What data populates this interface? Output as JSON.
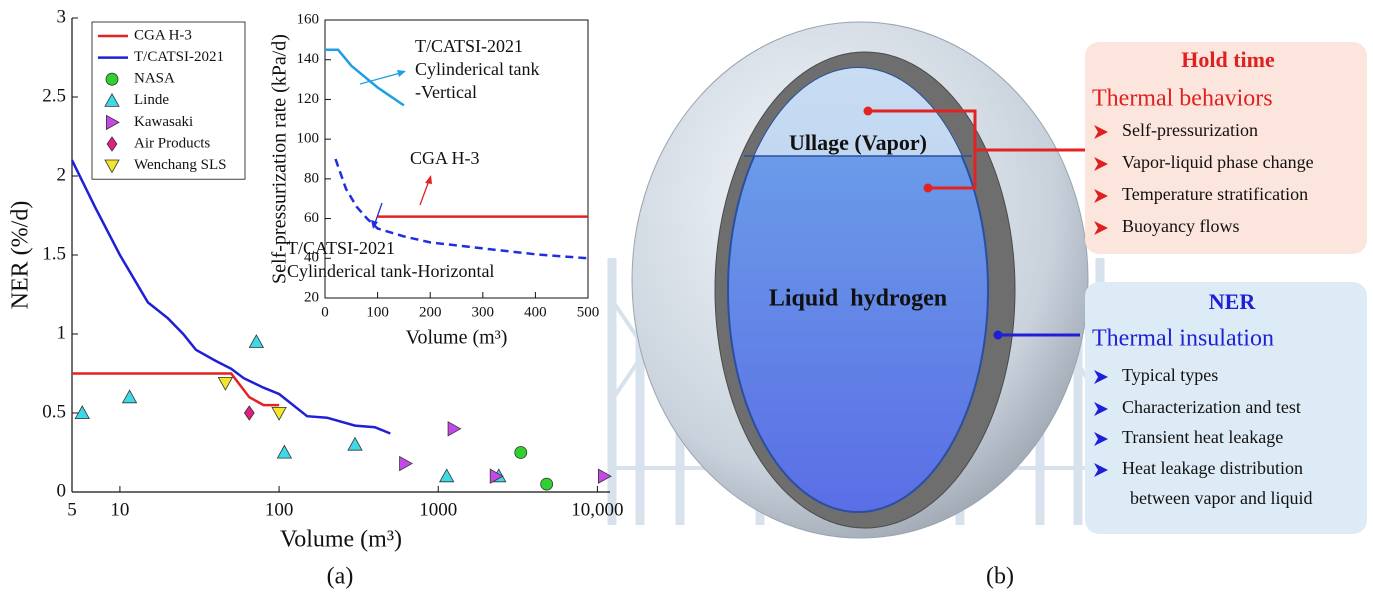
{
  "chart_data": [
    {
      "type": "line",
      "xlabel": "Volume (m³)",
      "ylabel": "NER (%/d)",
      "xscale": "log",
      "xlim": [
        5,
        12000
      ],
      "xticks": [
        5,
        10,
        100,
        1000,
        {
          "value": 10000,
          "label": "10,000"
        }
      ],
      "ylim": [
        0,
        3
      ],
      "yticks": [
        0,
        0.5,
        1,
        1.5,
        2,
        2.5,
        3
      ],
      "legend": "upper left",
      "series": [
        {
          "name": "CGA H-3",
          "color": "#e32222",
          "x": [
            5,
            50,
            65,
            80,
            100
          ],
          "values": [
            0.75,
            0.75,
            0.6,
            0.55,
            0.55
          ]
        },
        {
          "name": "T/CATSI-2021",
          "color": "#1f1fd6",
          "x": [
            5,
            7,
            10,
            15,
            20,
            25,
            30,
            40,
            50,
            60,
            80,
            100,
            150,
            200,
            300,
            400,
            500
          ],
          "values": [
            2.1,
            1.8,
            1.5,
            1.2,
            1.1,
            1.0,
            0.9,
            0.83,
            0.78,
            0.72,
            0.66,
            0.62,
            0.48,
            0.47,
            0.42,
            0.41,
            0.37
          ]
        },
        {
          "name": "NASA",
          "color": "#2fd12f",
          "marker": "circle",
          "x": [
            3300,
            4800
          ],
          "values": [
            0.25,
            0.05
          ]
        },
        {
          "name": "Linde",
          "color": "#3fd8e6",
          "marker": "triangle-up",
          "x": [
            5.8,
            11.5,
            72,
            108,
            300,
            1130,
            2400
          ],
          "values": [
            0.5,
            0.6,
            0.95,
            0.25,
            0.3,
            0.1,
            0.1
          ]
        },
        {
          "name": "Kawasaki",
          "color": "#c349e6",
          "marker": "triangle-right",
          "x": [
            620,
            1250,
            2300,
            11000
          ],
          "values": [
            0.18,
            0.4,
            0.1,
            0.1
          ]
        },
        {
          "name": "Air Products",
          "color": "#e3207f",
          "marker": "diamond",
          "x": [
            65
          ],
          "values": [
            0.5
          ]
        },
        {
          "name": "Wenchang SLS",
          "color": "#f2e62a",
          "marker": "triangle-down",
          "x": [
            46,
            100
          ],
          "values": [
            0.69,
            0.5
          ]
        }
      ]
    },
    {
      "type": "line",
      "xlabel": "Volume (m³)",
      "ylabel": "Self-pressurization rate (kPa/d)",
      "xlim": [
        0,
        500
      ],
      "xticks": [
        0,
        100,
        200,
        300,
        400,
        500
      ],
      "ylim": [
        20,
        160
      ],
      "yticks": [
        20,
        40,
        60,
        80,
        100,
        120,
        140,
        160
      ],
      "series": [
        {
          "color": "#1e9fe6",
          "x": [
            0,
            25,
            50,
            100,
            150
          ],
          "values": [
            145,
            145,
            137,
            126,
            117
          ]
        },
        {
          "color": "#e32222",
          "x": [
            100,
            500
          ],
          "values": [
            61,
            61
          ]
        },
        {
          "color": "#1f2fe0",
          "dash": true,
          "x": [
            20,
            40,
            60,
            80,
            100,
            150,
            200,
            300,
            400,
            500
          ],
          "values": [
            90,
            75,
            66,
            60,
            55,
            51,
            48,
            45,
            42,
            40
          ]
        }
      ],
      "annotations": [
        {
          "lines": [
            "T/CATSI-2021",
            "Cylinderical tank",
            "-Vertical"
          ]
        },
        {
          "lines": [
            "CGA H-3"
          ]
        },
        {
          "lines": [
            "T/CATSI-2021",
            "Cylinderical tank-Horizontal"
          ]
        }
      ]
    }
  ],
  "panel_labels": [
    "(a)",
    "(b)"
  ],
  "diagram": {
    "ullage": "Ullage (Vapor)",
    "liquid": "Liquid  hydrogen",
    "hold_time": {
      "title": "Hold time",
      "subtitle": "Thermal behaviors",
      "items": [
        "Self-pressurization",
        "Vapor-liquid phase change",
        "Temperature stratification",
        "Buoyancy flows"
      ]
    },
    "ner": {
      "title": "NER",
      "subtitle": "Thermal insulation",
      "items": [
        "Typical types",
        "Characterization and test",
        "Transient heat leakage",
        [
          "Heat leakage distribution",
          "between vapor and liquid"
        ]
      ]
    }
  }
}
